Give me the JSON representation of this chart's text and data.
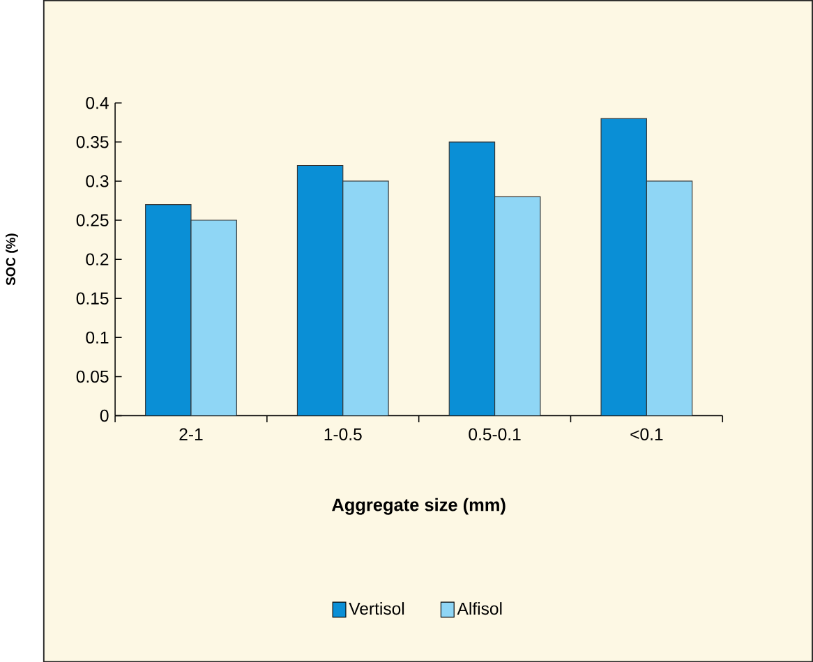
{
  "chart_data": {
    "type": "bar",
    "xlabel": "Aggregate size (mm)",
    "ylabel": "SOC (%)",
    "categories": [
      "2-1",
      "1-0.5",
      "0.5-0.1",
      "<0.1"
    ],
    "series": [
      {
        "name": "Vertisol",
        "color": "#0a8fd6",
        "values": [
          0.27,
          0.32,
          0.35,
          0.38
        ]
      },
      {
        "name": "Alfisol",
        "color": "#8fd6f5",
        "values": [
          0.25,
          0.3,
          0.28,
          0.3
        ]
      }
    ],
    "ylim": [
      0,
      0.4
    ],
    "yticks": [
      0,
      0.05,
      0.1,
      0.15,
      0.2,
      0.25,
      0.3,
      0.35,
      0.4
    ],
    "legend": "bottom"
  }
}
